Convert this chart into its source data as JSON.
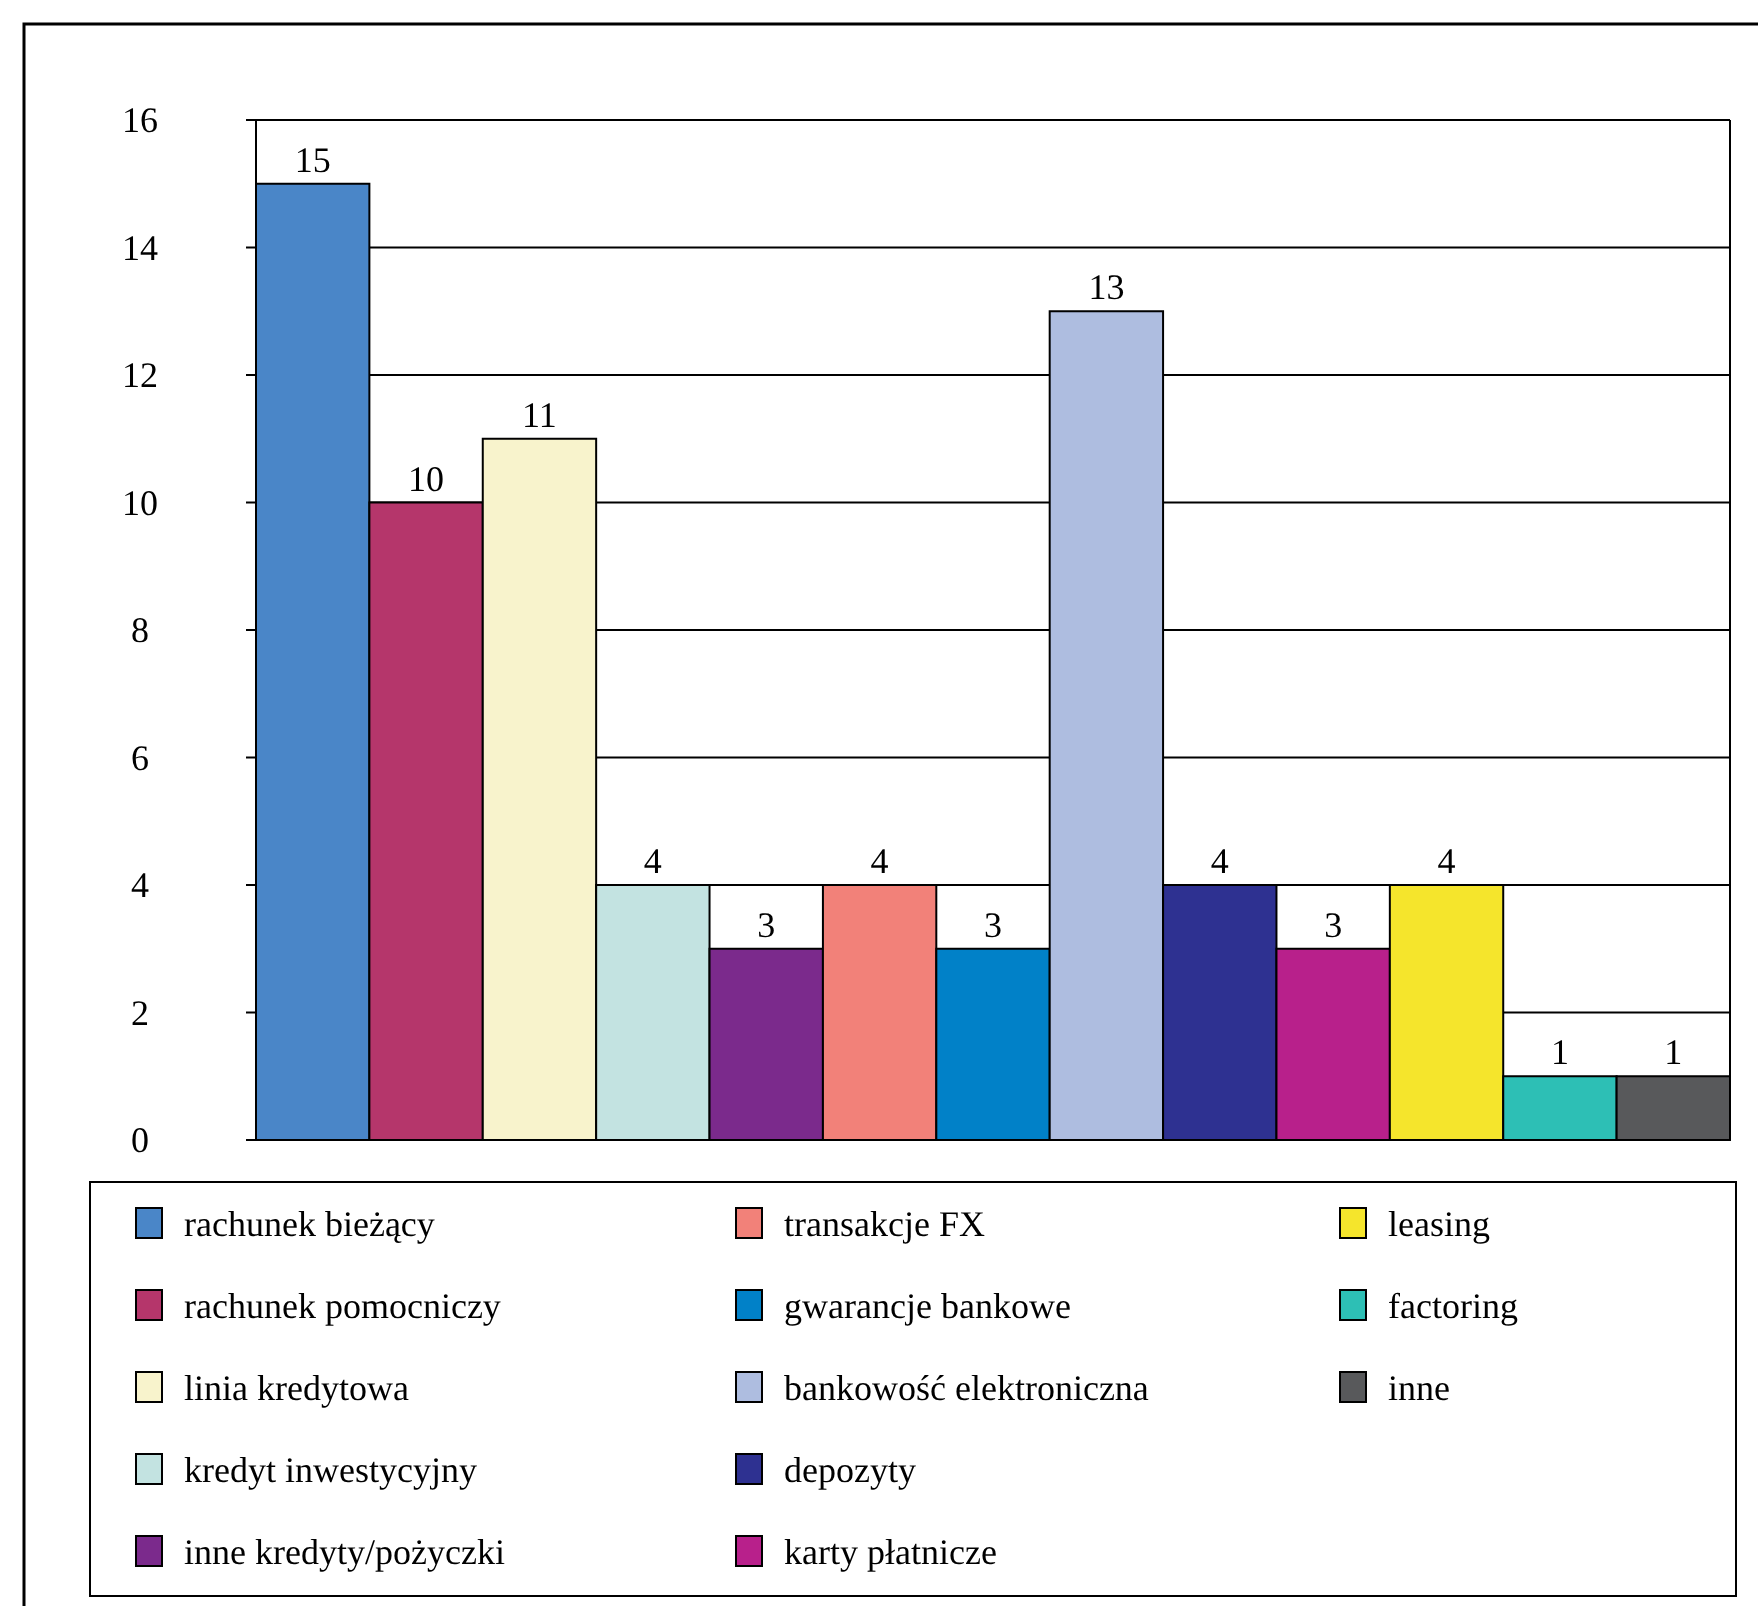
{
  "chart_data": {
    "type": "bar",
    "categories": [
      null,
      null,
      null,
      null,
      null,
      null,
      null,
      null,
      null,
      null,
      null,
      null,
      null
    ],
    "series": [
      {
        "name": "rachunek bieżący",
        "color": "#4a86c8",
        "values": [
          15,
          null,
          null,
          null,
          null,
          null,
          null,
          null,
          null,
          null,
          null,
          null,
          null
        ]
      },
      {
        "name": "rachunek pomocniczy",
        "color": "#b5366b",
        "values": [
          null,
          10,
          null,
          null,
          null,
          null,
          null,
          null,
          null,
          null,
          null,
          null,
          null
        ]
      },
      {
        "name": "linia kredytowa",
        "color": "#f8f3cc",
        "values": [
          null,
          null,
          11,
          null,
          null,
          null,
          null,
          null,
          null,
          null,
          null,
          null,
          null
        ]
      },
      {
        "name": "kredyt inwestycyjny",
        "color": "#c3e3e1",
        "values": [
          null,
          null,
          null,
          4,
          null,
          null,
          null,
          null,
          null,
          null,
          null,
          null,
          null
        ]
      },
      {
        "name": "inne kredyty/pożyczki",
        "color": "#7b2a8c",
        "values": [
          null,
          null,
          null,
          null,
          3,
          null,
          null,
          null,
          null,
          null,
          null,
          null,
          null
        ]
      },
      {
        "name": "transakcje FX",
        "color": "#f28179",
        "values": [
          null,
          null,
          null,
          null,
          null,
          4,
          null,
          null,
          null,
          null,
          null,
          null,
          null
        ]
      },
      {
        "name": "gwarancje bankowe",
        "color": "#0181c8",
        "values": [
          null,
          null,
          null,
          null,
          null,
          null,
          3,
          null,
          null,
          null,
          null,
          null,
          null
        ]
      },
      {
        "name": "bankowość elektroniczna",
        "color": "#aebde0",
        "values": [
          null,
          null,
          null,
          null,
          null,
          null,
          null,
          13,
          null,
          null,
          null,
          null,
          null
        ]
      },
      {
        "name": "depozyty",
        "color": "#2e3191",
        "values": [
          null,
          null,
          null,
          null,
          null,
          null,
          null,
          null,
          4,
          null,
          null,
          null,
          null
        ]
      },
      {
        "name": "karty płatnicze",
        "color": "#b8208b",
        "values": [
          null,
          null,
          null,
          null,
          null,
          null,
          null,
          null,
          null,
          3,
          null,
          null,
          null
        ]
      },
      {
        "name": "leasing",
        "color": "#f5e52c",
        "values": [
          null,
          null,
          null,
          null,
          null,
          null,
          null,
          null,
          null,
          null,
          4,
          null,
          null
        ]
      },
      {
        "name": "factoring",
        "color": "#2dbfb5",
        "values": [
          null,
          null,
          null,
          null,
          null,
          null,
          null,
          null,
          null,
          null,
          null,
          1,
          null
        ]
      },
      {
        "name": "inne",
        "color": "#58595b",
        "values": [
          null,
          null,
          null,
          null,
          null,
          null,
          null,
          null,
          null,
          null,
          null,
          null,
          1
        ]
      }
    ],
    "ylim": [
      0,
      16
    ],
    "yticks": [
      0,
      2,
      4,
      6,
      8,
      10,
      12,
      14,
      16
    ],
    "grid": "y",
    "data_labels": true,
    "legend": "bottom"
  }
}
